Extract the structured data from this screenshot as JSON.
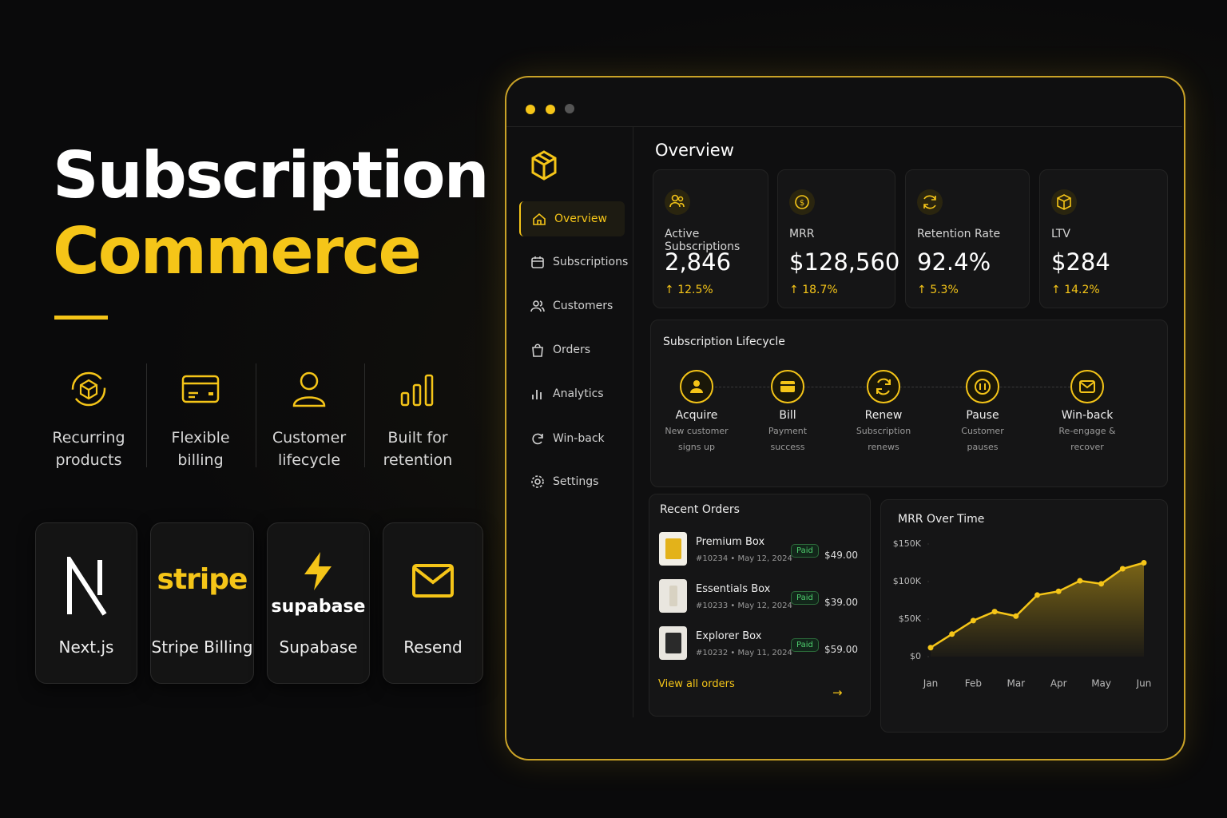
{
  "hero": {
    "line1": "Subscription",
    "line2": "Commerce"
  },
  "features": [
    "Recurring products",
    "Flexible billing",
    "Customer lifecycle",
    "Built for retention"
  ],
  "tech": [
    {
      "logo": null,
      "name": "Next.js"
    },
    {
      "logo": "stripe",
      "name": "Stripe Billing"
    },
    {
      "logo": "supabase",
      "name": "Supabase"
    },
    {
      "logo": null,
      "name": "Resend"
    }
  ],
  "sidebar": [
    "Overview",
    "Subscriptions",
    "Customers",
    "Orders",
    "Analytics",
    "Win-back",
    "Settings"
  ],
  "heading": "Overview",
  "kpis": [
    {
      "label": "Active Subscriptions",
      "value": "2,846",
      "change": "12.5%"
    },
    {
      "label": "MRR",
      "value": "$128,560",
      "change": "18.7%"
    },
    {
      "label": "Retention Rate",
      "value": "92.4%",
      "change": "5.3%"
    },
    {
      "label": "LTV",
      "value": "$284",
      "change": "14.2%"
    }
  ],
  "lifecycle": {
    "title": "Subscription Lifecycle",
    "steps": [
      {
        "title": "Acquire",
        "desc": "New customer signs up"
      },
      {
        "title": "Bill",
        "desc": "Payment success"
      },
      {
        "title": "Renew",
        "desc": "Subscription renews"
      },
      {
        "title": "Pause",
        "desc": "Customer pauses"
      },
      {
        "title": "Win-back",
        "desc": "Re-engage & recover"
      }
    ]
  },
  "orders": {
    "title": "Recent Orders",
    "rows": [
      {
        "name": "Premium Box",
        "meta": "#10234 • May 12, 2024",
        "status": "Paid",
        "price": "$49.00"
      },
      {
        "name": "Essentials Box",
        "meta": "#10233 • May 12, 2024",
        "status": "Paid",
        "price": "$39.00"
      },
      {
        "name": "Explorer Box",
        "meta": "#10232 • May 11, 2024",
        "status": "Paid",
        "price": "$59.00"
      }
    ],
    "link": "View all orders"
  },
  "chart_data": {
    "type": "area",
    "title": "MRR Over Time",
    "categories": [
      "Jan",
      null,
      "Feb",
      null,
      "Mar",
      null,
      "Apr",
      null,
      "May",
      null,
      "Jun"
    ],
    "values": [
      12000,
      30000,
      48000,
      60000,
      54000,
      82000,
      87000,
      101000,
      97000,
      117000,
      125000
    ],
    "color": "#f5c518",
    "ylim": [
      0,
      150000
    ],
    "yticks": [
      {
        "value": 0,
        "label": "$0"
      },
      {
        "value": 50000,
        "label": "$50K"
      },
      {
        "value": 100000,
        "label": "$100K"
      },
      {
        "value": 150000,
        "label": "$150K"
      }
    ]
  }
}
